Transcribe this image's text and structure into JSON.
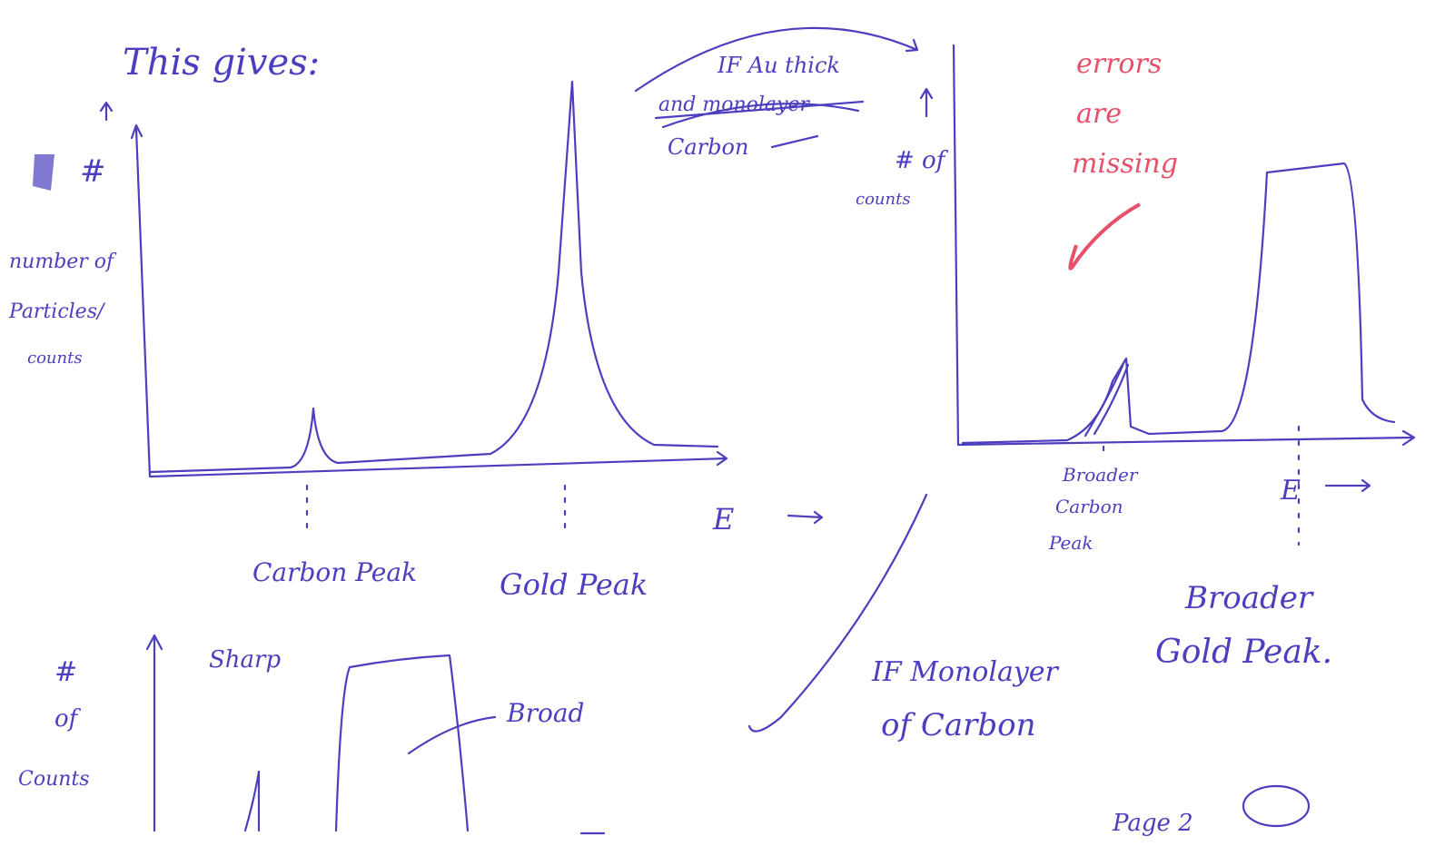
{
  "header": {
    "title": "This gives:",
    "page": "Page 2"
  },
  "plots": [
    {
      "y_label": [
        "#",
        "number of",
        "Particles/",
        "counts"
      ],
      "peaks": [
        "Carbon Peak",
        "Gold Peak"
      ],
      "x_label": "E"
    },
    {
      "note": [
        "IF Au thick",
        "and monolayer",
        "Carbon"
      ],
      "y_label": [
        "# of",
        "counts"
      ],
      "peaks": [
        "Broader",
        "Carbon",
        "Peak"
      ],
      "x_label": "E",
      "gold": [
        "Broader",
        "Gold Peak."
      ]
    },
    {
      "y_label": [
        "#",
        "of",
        "Counts"
      ],
      "marks": [
        "Sharp",
        "Broad"
      ]
    }
  ],
  "comment": [
    "errors",
    "are",
    "missing"
  ],
  "case": [
    "IF Monolayer",
    "of Carbon"
  ]
}
